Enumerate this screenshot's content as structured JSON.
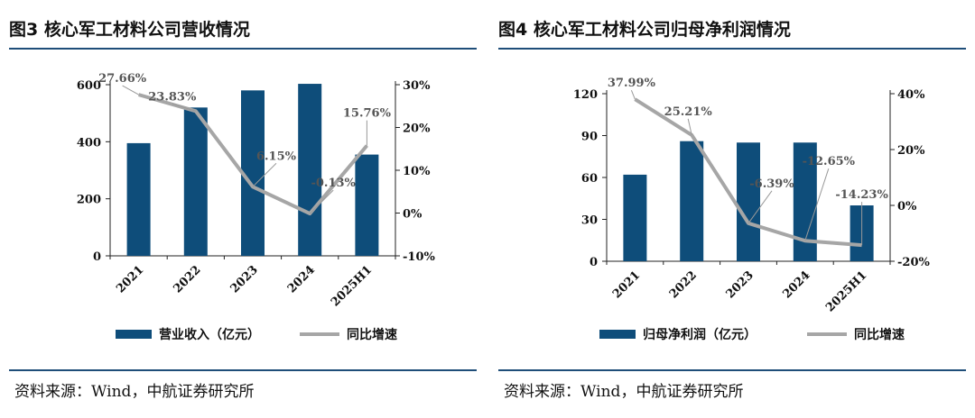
{
  "chart_data": [
    {
      "type": "bar",
      "title": "图3  核心军工材料公司营收情况",
      "categories": [
        "2021",
        "2022",
        "2023",
        "2024",
        "2025H1"
      ],
      "series": [
        {
          "name": "营业收入（亿元）",
          "type": "bar",
          "axis": "left",
          "values": [
            395,
            520,
            580,
            603,
            355
          ],
          "color": "#0e4d7a"
        },
        {
          "name": "同比增速",
          "type": "line",
          "axis": "right",
          "values": [
            27.66,
            23.83,
            6.15,
            -0.13,
            15.76
          ],
          "labels": [
            "27.66%",
            "23.83%",
            "6.15%",
            "-0.13%",
            "15.76%"
          ],
          "color": "#a6a6a6"
        }
      ],
      "yleft": {
        "min": 0,
        "max": 600,
        "ticks": [
          "0",
          "200",
          "400",
          "600"
        ],
        "tick_values": [
          0,
          200,
          400,
          600
        ]
      },
      "yright": {
        "min": -10,
        "max": 30,
        "ticks": [
          "-10%",
          "0%",
          "10%",
          "20%",
          "30%"
        ],
        "tick_values": [
          -10,
          0,
          10,
          20,
          30
        ]
      },
      "legend_position": "bottom",
      "source": "资料来源：Wind，中航证券研究所"
    },
    {
      "type": "bar",
      "title": "图4  核心军工材料公司归母净利润情况",
      "categories": [
        "2021",
        "2022",
        "2023",
        "2024",
        "2025H1"
      ],
      "series": [
        {
          "name": "归母净利润（亿元）",
          "type": "bar",
          "axis": "left",
          "values": [
            62,
            86,
            85,
            85,
            40
          ],
          "color": "#0e4d7a"
        },
        {
          "name": "同比增速",
          "type": "line",
          "axis": "right",
          "values": [
            37.99,
            25.21,
            -6.39,
            -12.65,
            -14.23
          ],
          "labels": [
            "37.99%",
            "25.21%",
            "-6.39%",
            "-12.65%",
            "-14.23%"
          ],
          "color": "#a6a6a6"
        }
      ],
      "yleft": {
        "min": 0,
        "max": 120,
        "ticks": [
          "0",
          "30",
          "60",
          "90",
          "120"
        ],
        "tick_values": [
          0,
          30,
          60,
          90,
          120
        ]
      },
      "yright": {
        "min": -20,
        "max": 40,
        "ticks": [
          "-20%",
          "0%",
          "20%",
          "40%"
        ],
        "tick_values": [
          -20,
          0,
          20,
          40
        ]
      },
      "legend_position": "bottom",
      "source": "资料来源：Wind，中航证券研究所"
    }
  ]
}
